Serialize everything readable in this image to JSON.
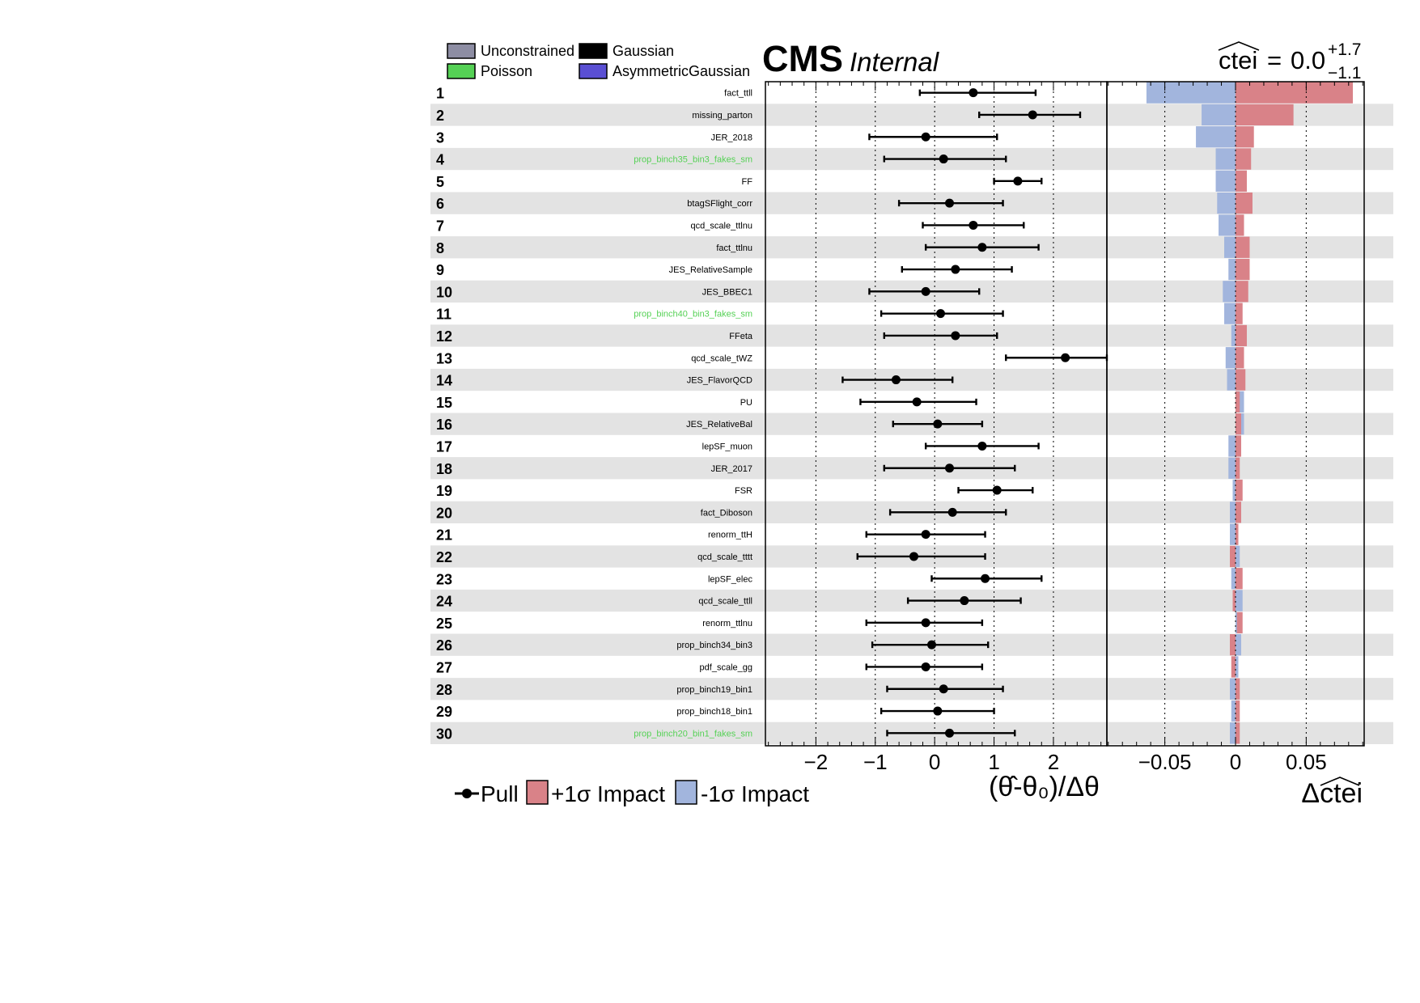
{
  "header": {
    "experiment": "CMS",
    "status": "Internal",
    "poi_name": "ctei",
    "poi_value": "0.0",
    "poi_err_up": "+1.7",
    "poi_err_down": "−1.1"
  },
  "top_legend": [
    {
      "label": "Unconstrained",
      "color": "#8d8da3"
    },
    {
      "label": "Gaussian",
      "color": "#000000"
    },
    {
      "label": "Poisson",
      "color": "#55d155"
    },
    {
      "label": "AsymmetricGaussian",
      "color": "#5a4fd3"
    }
  ],
  "bottom_legend": {
    "pull": "Pull",
    "plus_impact": "+1σ Impact",
    "minus_impact": "-1σ Impact"
  },
  "colors": {
    "plus_impact": "#d98288",
    "minus_impact": "#a2b5dd",
    "stripe": "#e3e3e3",
    "poisson_label": "#55d155",
    "gaussian_label": "#000000"
  },
  "chart_data": [
    {
      "type": "scatter",
      "name": "pulls",
      "xlabel": "(θ̂-θ₀)/Δθ",
      "xlim": [
        -2.85,
        2.9
      ],
      "ticks": [
        -2,
        -1,
        0,
        1,
        2
      ],
      "tick_labels": [
        "−2",
        "−1",
        "0",
        "1",
        "2"
      ],
      "grid": "dotted vertical lines at integer values"
    },
    {
      "type": "bar",
      "name": "impacts",
      "xlabel": "Δctei",
      "xlim": [
        -0.091,
        0.091
      ],
      "ticks": [
        -0.05,
        0,
        0.05
      ],
      "tick_labels": [
        "−0.05",
        "0",
        "0.05"
      ],
      "grid": "dotted vertical lines at ±0.05"
    }
  ],
  "parameters": [
    {
      "rank": "1",
      "name": "fact_ttll",
      "type": "gaussian",
      "pull": 0.65,
      "lo": -0.25,
      "hi": 1.7,
      "imp_plus": 0.083,
      "imp_minus": -0.063
    },
    {
      "rank": "2",
      "name": "missing_parton",
      "type": "gaussian",
      "pull": 1.65,
      "lo": 0.75,
      "hi": 2.45,
      "imp_plus": 0.041,
      "imp_minus": -0.024
    },
    {
      "rank": "3",
      "name": "JER_2018",
      "type": "gaussian",
      "pull": -0.15,
      "lo": -1.1,
      "hi": 1.05,
      "imp_plus": 0.013,
      "imp_minus": -0.028
    },
    {
      "rank": "4",
      "name": "prop_binch35_bin3_fakes_sm",
      "type": "poisson",
      "pull": 0.15,
      "lo": -0.85,
      "hi": 1.2,
      "imp_plus": 0.011,
      "imp_minus": -0.014
    },
    {
      "rank": "5",
      "name": "FF",
      "type": "gaussian",
      "pull": 1.4,
      "lo": 1.0,
      "hi": 1.8,
      "imp_plus": 0.008,
      "imp_minus": -0.014
    },
    {
      "rank": "6",
      "name": "btagSFlight_corr",
      "type": "gaussian",
      "pull": 0.25,
      "lo": -0.6,
      "hi": 1.15,
      "imp_plus": 0.012,
      "imp_minus": -0.013
    },
    {
      "rank": "7",
      "name": "qcd_scale_ttlnu",
      "type": "gaussian",
      "pull": 0.65,
      "lo": -0.2,
      "hi": 1.5,
      "imp_plus": 0.006,
      "imp_minus": -0.012
    },
    {
      "rank": "8",
      "name": "fact_ttlnu",
      "type": "gaussian",
      "pull": 0.8,
      "lo": -0.15,
      "hi": 1.75,
      "imp_plus": 0.01,
      "imp_minus": -0.008
    },
    {
      "rank": "9",
      "name": "JES_RelativeSample",
      "type": "gaussian",
      "pull": 0.35,
      "lo": -0.55,
      "hi": 1.3,
      "imp_plus": 0.01,
      "imp_minus": -0.005
    },
    {
      "rank": "10",
      "name": "JES_BBEC1",
      "type": "gaussian",
      "pull": -0.15,
      "lo": -1.1,
      "hi": 0.75,
      "imp_plus": 0.009,
      "imp_minus": -0.009
    },
    {
      "rank": "11",
      "name": "prop_binch40_bin3_fakes_sm",
      "type": "poisson",
      "pull": 0.1,
      "lo": -0.9,
      "hi": 1.15,
      "imp_plus": 0.005,
      "imp_minus": -0.008
    },
    {
      "rank": "12",
      "name": "FFeta",
      "type": "gaussian",
      "pull": 0.35,
      "lo": -0.85,
      "hi": 1.05,
      "imp_plus": 0.008,
      "imp_minus": -0.003
    },
    {
      "rank": "13",
      "name": "qcd_scale_tWZ",
      "type": "gaussian",
      "pull": 2.2,
      "lo": 1.2,
      "hi": 2.9,
      "imp_plus": 0.006,
      "imp_minus": -0.007
    },
    {
      "rank": "14",
      "name": "JES_FlavorQCD",
      "type": "gaussian",
      "pull": -0.65,
      "lo": -1.55,
      "hi": 0.3,
      "imp_plus": 0.007,
      "imp_minus": -0.006
    },
    {
      "rank": "15",
      "name": "PU",
      "type": "gaussian",
      "pull": -0.3,
      "lo": -1.25,
      "hi": 0.7,
      "imp_plus": 0.003,
      "imp_minus": 0.006
    },
    {
      "rank": "16",
      "name": "JES_RelativeBal",
      "type": "gaussian",
      "pull": 0.05,
      "lo": -0.7,
      "hi": 0.8,
      "imp_plus": 0.004,
      "imp_minus": 0.006
    },
    {
      "rank": "17",
      "name": "lepSF_muon",
      "type": "gaussian",
      "pull": 0.8,
      "lo": -0.15,
      "hi": 1.75,
      "imp_plus": 0.004,
      "imp_minus": -0.005
    },
    {
      "rank": "18",
      "name": "JER_2017",
      "type": "gaussian",
      "pull": 0.25,
      "lo": -0.85,
      "hi": 1.35,
      "imp_plus": 0.003,
      "imp_minus": -0.005
    },
    {
      "rank": "19",
      "name": "FSR",
      "type": "gaussian",
      "pull": 1.05,
      "lo": 0.4,
      "hi": 1.65,
      "imp_plus": 0.005,
      "imp_minus": -0.002
    },
    {
      "rank": "20",
      "name": "fact_Diboson",
      "type": "gaussian",
      "pull": 0.3,
      "lo": -0.75,
      "hi": 1.2,
      "imp_plus": 0.004,
      "imp_minus": -0.004
    },
    {
      "rank": "21",
      "name": "renorm_ttH",
      "type": "gaussian",
      "pull": -0.15,
      "lo": -1.15,
      "hi": 0.85,
      "imp_plus": 0.002,
      "imp_minus": -0.004
    },
    {
      "rank": "22",
      "name": "qcd_scale_tttt",
      "type": "gaussian",
      "pull": -0.35,
      "lo": -1.3,
      "hi": 0.85,
      "imp_plus": -0.004,
      "imp_minus": 0.003
    },
    {
      "rank": "23",
      "name": "lepSF_elec",
      "type": "gaussian",
      "pull": 0.85,
      "lo": -0.05,
      "hi": 1.8,
      "imp_plus": 0.005,
      "imp_minus": -0.003
    },
    {
      "rank": "24",
      "name": "qcd_scale_ttll",
      "type": "gaussian",
      "pull": 0.5,
      "lo": -0.45,
      "hi": 1.45,
      "imp_plus": -0.002,
      "imp_minus": 0.005
    },
    {
      "rank": "25",
      "name": "renorm_ttlnu",
      "type": "gaussian",
      "pull": -0.15,
      "lo": -1.15,
      "hi": 0.8,
      "imp_plus": 0.005,
      "imp_minus": 0.001
    },
    {
      "rank": "26",
      "name": "prop_binch34_bin3",
      "type": "gaussian",
      "pull": -0.05,
      "lo": -1.05,
      "hi": 0.9,
      "imp_plus": -0.004,
      "imp_minus": 0.004
    },
    {
      "rank": "27",
      "name": "pdf_scale_gg",
      "type": "gaussian",
      "pull": -0.15,
      "lo": -1.15,
      "hi": 0.8,
      "imp_plus": -0.003,
      "imp_minus": 0.002
    },
    {
      "rank": "28",
      "name": "prop_binch19_bin1",
      "type": "gaussian",
      "pull": 0.15,
      "lo": -0.8,
      "hi": 1.15,
      "imp_plus": 0.003,
      "imp_minus": -0.004
    },
    {
      "rank": "29",
      "name": "prop_binch18_bin1",
      "type": "gaussian",
      "pull": 0.05,
      "lo": -0.9,
      "hi": 1.0,
      "imp_plus": 0.003,
      "imp_minus": -0.003
    },
    {
      "rank": "30",
      "name": "prop_binch20_bin1_fakes_sm",
      "type": "poisson",
      "pull": 0.25,
      "lo": -0.8,
      "hi": 1.35,
      "imp_plus": 0.003,
      "imp_minus": -0.004
    }
  ]
}
